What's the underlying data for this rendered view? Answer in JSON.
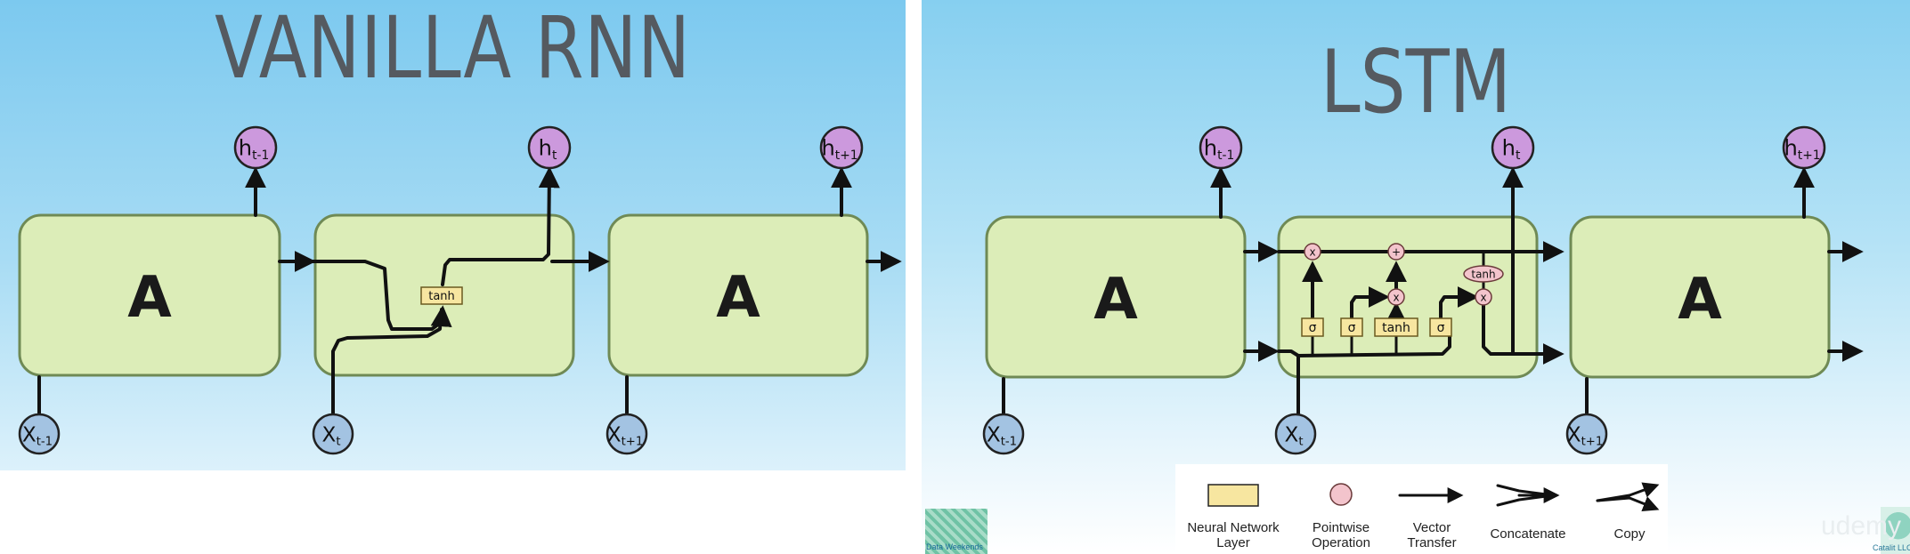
{
  "rnn": {
    "title": "VANILLA RNN",
    "cell_label": "A",
    "op_label": "tanh",
    "outputs": [
      {
        "base": "h",
        "sub": "t-1"
      },
      {
        "base": "h",
        "sub": "t"
      },
      {
        "base": "h",
        "sub": "t+1"
      }
    ],
    "inputs": [
      {
        "base": "X",
        "sub": "t-1"
      },
      {
        "base": "X",
        "sub": "t"
      },
      {
        "base": "X",
        "sub": "t+1"
      }
    ]
  },
  "lstm": {
    "title": "LSTM",
    "cell_label": "A",
    "gates": [
      "σ",
      "σ",
      "tanh",
      "σ"
    ],
    "pointwise_ops": [
      "x",
      "+",
      "x",
      "tanh",
      "x"
    ],
    "outputs": [
      {
        "base": "h",
        "sub": "t-1"
      },
      {
        "base": "h",
        "sub": "t"
      },
      {
        "base": "h",
        "sub": "t+1"
      }
    ],
    "inputs": [
      {
        "base": "X",
        "sub": "t-1"
      },
      {
        "base": "X",
        "sub": "t"
      },
      {
        "base": "X",
        "sub": "t+1"
      }
    ]
  },
  "legend": {
    "items": [
      {
        "label_1": "Neural Network",
        "label_2": "Layer"
      },
      {
        "label_1": "Pointwise",
        "label_2": "Operation"
      },
      {
        "label_1": "Vector",
        "label_2": "Transfer"
      },
      {
        "label_1": "Concatenate",
        "label_2": ""
      },
      {
        "label_1": "Copy",
        "label_2": ""
      }
    ]
  },
  "logos": {
    "left_text": "Data Weekends",
    "right_text": "Catalit LLC",
    "watermark": "udemy"
  },
  "colors": {
    "cell_fill": "#dcedb8",
    "cell_stroke": "#6f8a55",
    "h_node": "#cc99dd",
    "x_node": "#a3c3e2",
    "layer_box": "#f7e6a0",
    "pointwise": "#f3c4cc",
    "title": "#555a60"
  }
}
